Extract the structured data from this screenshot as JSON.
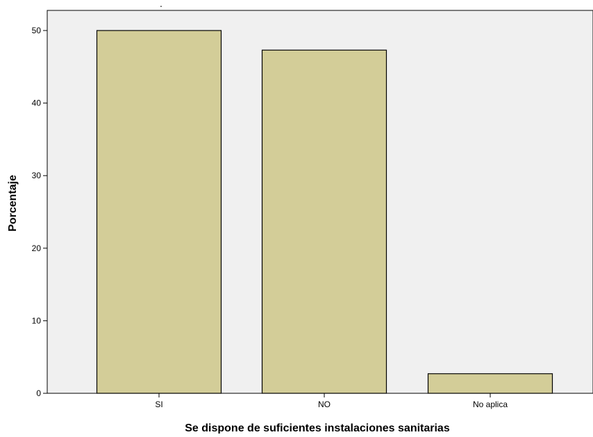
{
  "chart_data": {
    "type": "bar",
    "title": ".",
    "xlabel": "Se dispone de suficientes instalaciones sanitarias",
    "ylabel": "Porcentaje",
    "categories": [
      "SI",
      "NO",
      "No aplica"
    ],
    "values": [
      50.0,
      47.3,
      2.7
    ],
    "ylim": [
      0,
      55
    ],
    "yticks": [
      0,
      10,
      20,
      30,
      40,
      50
    ],
    "grid": false,
    "legend": "none",
    "colors": {
      "bar_fill": "#d3cd98",
      "bar_stroke": "#000000",
      "plot_background": "#f0f0f0",
      "page_background": "#ffffff",
      "axis": "#000000"
    }
  }
}
